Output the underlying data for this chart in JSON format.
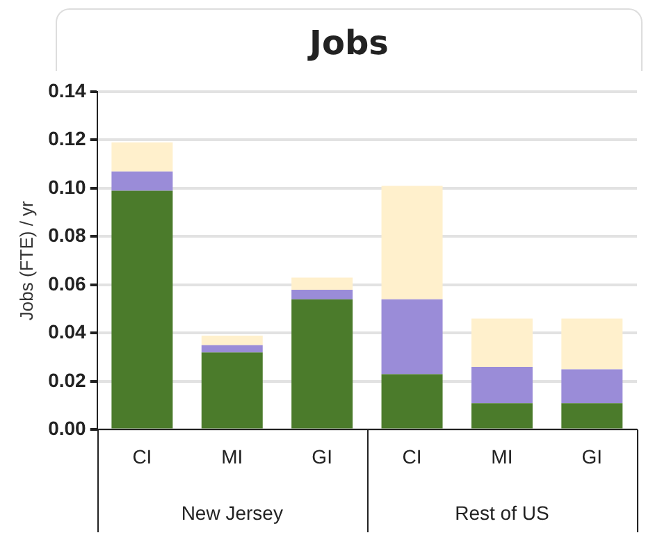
{
  "chart_data": {
    "type": "bar",
    "title": "Jobs",
    "ylabel": "Jobs (FTE) / yr",
    "categories": [
      "CI",
      "MI",
      "GI",
      "CI",
      "MI",
      "GI"
    ],
    "stacked": true,
    "series": [
      {
        "color": "#4b7b2b",
        "values": [
          0.099,
          0.032,
          0.054,
          0.023,
          0.011,
          0.011
        ]
      },
      {
        "color": "#9a8cd8",
        "values": [
          0.008,
          0.003,
          0.004,
          0.031,
          0.015,
          0.014
        ]
      },
      {
        "color": "#fff0cc",
        "values": [
          0.012,
          0.004,
          0.005,
          0.047,
          0.02,
          0.021
        ]
      }
    ],
    "ylim": [
      0,
      0.14
    ],
    "yticks": [
      {
        "value": 0,
        "label": "0.00"
      },
      {
        "value": 0.02,
        "label": "0.02"
      },
      {
        "value": 0.04,
        "label": "0.04"
      },
      {
        "value": 0.06,
        "label": "0.06"
      },
      {
        "value": 0.08,
        "label": "0.08"
      },
      {
        "value": 0.1,
        "label": "0.10"
      },
      {
        "value": 0.12,
        "label": "0.12"
      },
      {
        "value": 0.14,
        "label": "0.14"
      }
    ],
    "grid": "y",
    "legend": false,
    "annotations": [
      "New Jersey",
      "Rest of US"
    ]
  }
}
